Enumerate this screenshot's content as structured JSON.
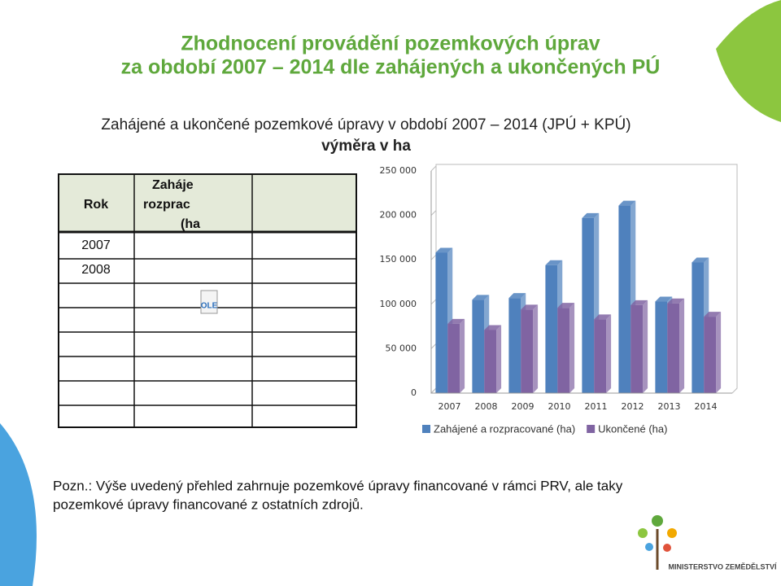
{
  "slide": {
    "title": [
      "Zhodnocení provádění pozemkových úprav",
      "za období 2007 – 2014 dle zahájených a ukončených PÚ"
    ],
    "subtitle": [
      "Zahájené a ukončené pozemkové úpravy v období 2007 – 2014 (JPÚ + KPÚ)",
      "výměra v ha"
    ],
    "table": {
      "header": [
        "Rok",
        "Zaháje",
        "rozprac",
        "(ha"
      ],
      "rows": [
        "2007",
        "2008"
      ],
      "ole": "OLE"
    },
    "note": [
      "Pozn.: Výše uvedený přehled zahrnuje pozemkové úpravy financované v rámci PRV, ale taky",
      "pozemkové úpravy financované z ostatních zdrojů."
    ],
    "logo": "MINISTERSTVO ZEMĚDĚLSTVÍ"
  },
  "chart_data": {
    "type": "bar3d",
    "categories": [
      "2007",
      "2008",
      "2009",
      "2010",
      "2011",
      "2012",
      "2013",
      "2014"
    ],
    "series": [
      {
        "name": "Zahájené a rozpracované (ha)",
        "color": "#4f81bd",
        "values": [
          158000,
          105000,
          107000,
          144000,
          197000,
          211000,
          103000,
          147000
        ]
      },
      {
        "name": "Ukončené (ha)",
        "color": "#8064a2",
        "values": [
          78000,
          71000,
          94000,
          96000,
          83000,
          99000,
          101000,
          86000
        ]
      }
    ],
    "ylim": [
      0,
      250000
    ],
    "yticks": [
      0,
      {
        "value": 50000,
        "label": "50 000"
      },
      {
        "value": 100000,
        "label": "100 000"
      },
      {
        "value": 150000,
        "label": "150 000"
      },
      {
        "value": 200000,
        "label": "200 000"
      },
      {
        "value": 250000,
        "label": "250 000"
      }
    ],
    "grid": true,
    "legend": "bottom"
  }
}
